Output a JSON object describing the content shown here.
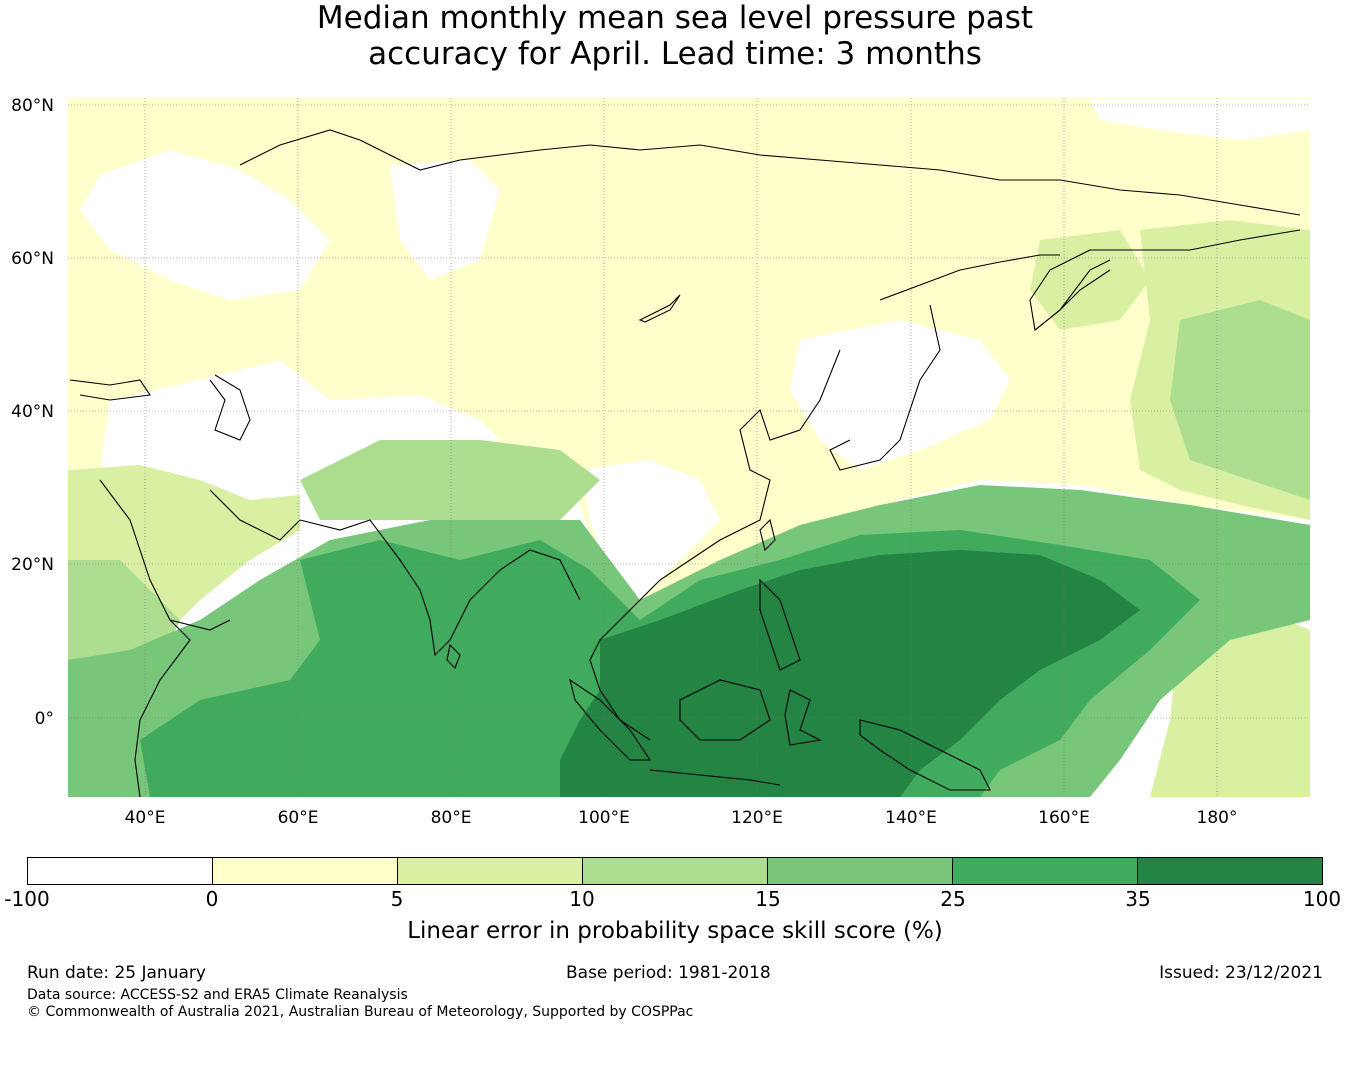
{
  "title_line1": "Median monthly mean sea level pressure past",
  "title_line2": "accuracy for April. Lead time: 3 months",
  "map": {
    "lat_labels": [
      "80°N",
      "60°N",
      "40°N",
      "20°N",
      "0°"
    ],
    "lon_labels": [
      "40°E",
      "60°E",
      "80°E",
      "100°E",
      "120°E",
      "140°E",
      "160°E",
      "180°"
    ],
    "lat_range": [
      -10,
      81
    ],
    "lon_range": [
      30,
      192
    ],
    "background_color": "#ffffff"
  },
  "colorbar": {
    "ticks": [
      "-100",
      "0",
      "5",
      "10",
      "15",
      "25",
      "35",
      "100"
    ],
    "colors": [
      "#ffffff",
      "#ffffcc",
      "#d9f0a3",
      "#addd8e",
      "#78c679",
      "#41ab5d",
      "#238443"
    ],
    "label": "Linear error in probability space skill score (%)"
  },
  "footer": {
    "run_date": "Run date: 25 January",
    "base_period": "Base period: 1981-2018",
    "issued": "Issued: 23/12/2021",
    "data_source": "Data source: ACCESS-S2 and ERA5 Climate Reanalysis",
    "copyright": "© Commonwealth of Australia 2021, Australian Bureau of Meteorology, Supported by COSPPac"
  }
}
